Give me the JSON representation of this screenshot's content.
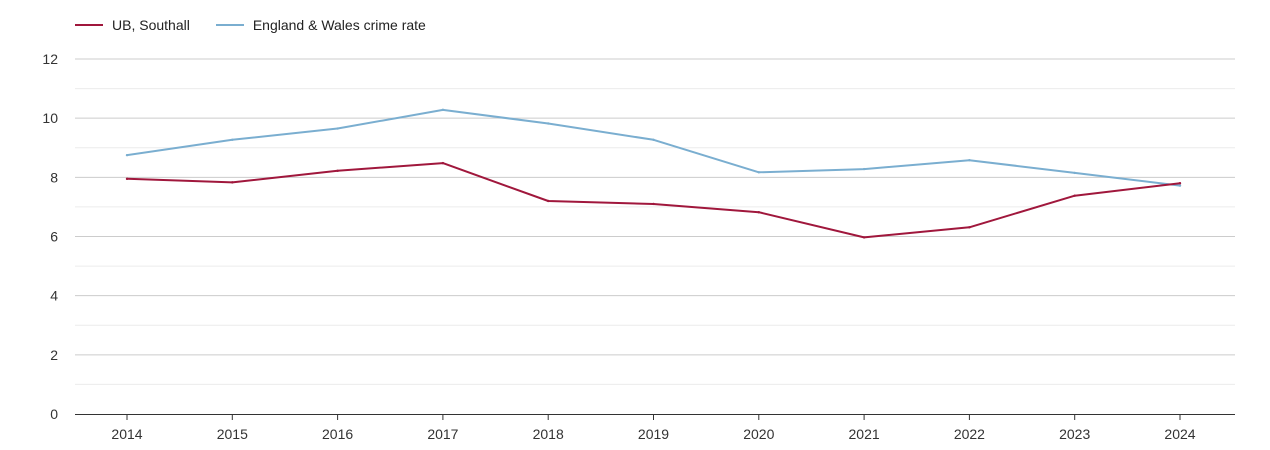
{
  "chart_data": {
    "type": "line",
    "title": "",
    "xlabel": "",
    "ylabel": "",
    "categories": [
      "2014",
      "2015",
      "2016",
      "2017",
      "2018",
      "2019",
      "2020",
      "2021",
      "2022",
      "2023",
      "2024"
    ],
    "ylim": [
      0,
      12
    ],
    "yticks": [
      "0",
      "2",
      "4",
      "6",
      "8",
      "10",
      "12"
    ],
    "grid": true,
    "legend_position": "top-left",
    "series": [
      {
        "name": "UB, Southall",
        "color": "#a0173c",
        "values": [
          7.95,
          7.83,
          8.22,
          8.48,
          7.2,
          7.1,
          6.82,
          5.97,
          6.31,
          7.38,
          7.8
        ]
      },
      {
        "name": "England & Wales crime rate",
        "color": "#7aaed0",
        "values": [
          8.75,
          9.27,
          9.65,
          10.28,
          9.82,
          9.27,
          8.17,
          8.28,
          8.58,
          8.15,
          7.72
        ]
      }
    ]
  }
}
